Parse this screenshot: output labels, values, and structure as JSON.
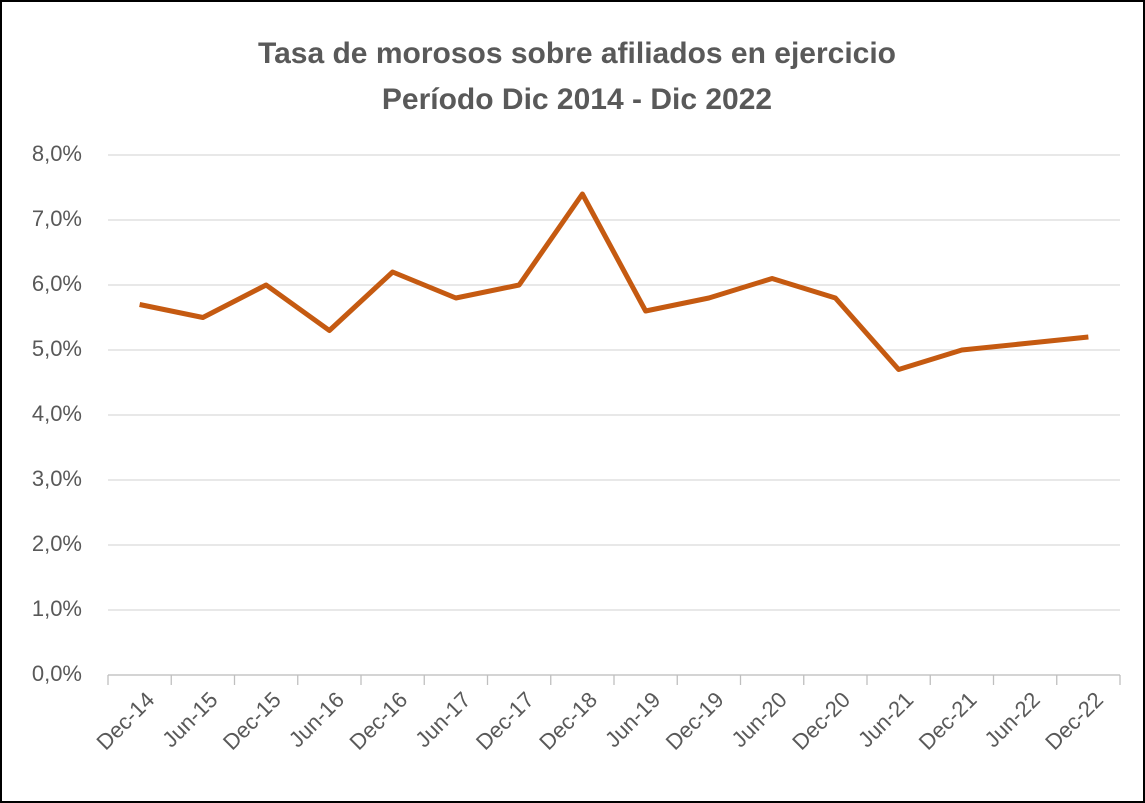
{
  "chart_data": {
    "type": "line",
    "title": "Tasa de morosos sobre afiliados en ejercicio",
    "subtitle": "Período Dic 2014 - Dic 2022",
    "categories": [
      "Dec-14",
      "Jun-15",
      "Dec-15",
      "Jun-16",
      "Dec-16",
      "Jun-17",
      "Dec-17",
      "Dec-18",
      "Jun-19",
      "Dec-19",
      "Jun-20",
      "Dec-20",
      "Jun-21",
      "Dec-21",
      "Jun-22",
      "Dec-22"
    ],
    "values": [
      5.7,
      5.5,
      6.0,
      5.3,
      6.2,
      5.8,
      6.0,
      7.4,
      5.6,
      5.8,
      6.1,
      5.8,
      4.7,
      5.0,
      5.1,
      5.2
    ],
    "color": "#c55a11",
    "ylim": [
      0,
      8
    ],
    "yticks": [
      {
        "value": 0,
        "label": "0,0%"
      },
      {
        "value": 1,
        "label": "1,0%"
      },
      {
        "value": 2,
        "label": "2,0%"
      },
      {
        "value": 3,
        "label": "3,0%"
      },
      {
        "value": 4,
        "label": "4,0%"
      },
      {
        "value": 5,
        "label": "5,0%"
      },
      {
        "value": 6,
        "label": "6,0%"
      },
      {
        "value": 7,
        "label": "7,0%"
      },
      {
        "value": 8,
        "label": "8,0%"
      }
    ],
    "grid": true
  }
}
